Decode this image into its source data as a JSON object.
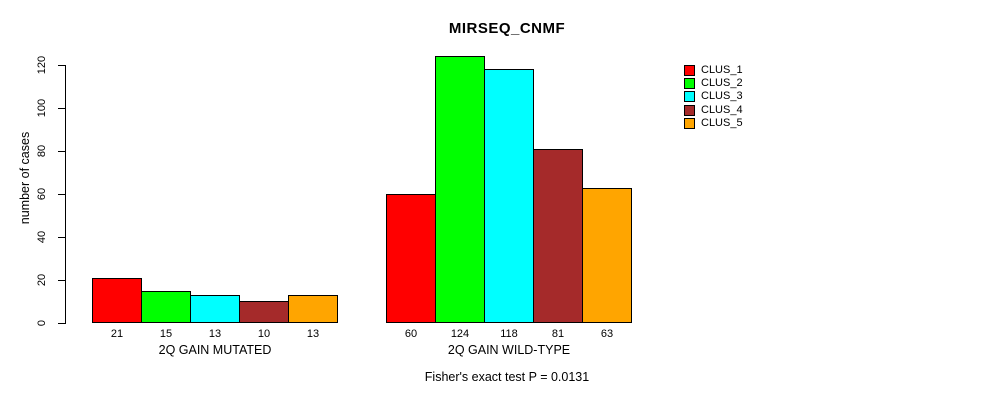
{
  "chart_data": {
    "type": "bar",
    "title": "MIRSEQ_CNMF",
    "ylabel": "number of cases",
    "xlabel": "",
    "ylim": [
      0,
      120
    ],
    "yticks": [
      0,
      20,
      40,
      60,
      80,
      100,
      120
    ],
    "grid": false,
    "legend_position": "right",
    "categories": [
      "2Q GAIN MUTATED",
      "2Q GAIN WILD-TYPE"
    ],
    "groups": [
      {
        "label": "2Q GAIN MUTATED",
        "values": [
          21,
          15,
          13,
          10,
          13
        ]
      },
      {
        "label": "2Q GAIN WILD-TYPE",
        "values": [
          60,
          124,
          118,
          81,
          63
        ]
      }
    ],
    "series": [
      {
        "name": "CLUS_1",
        "color": "#FF0000"
      },
      {
        "name": "CLUS_2",
        "color": "#00FF00"
      },
      {
        "name": "CLUS_3",
        "color": "#00FFFF"
      },
      {
        "name": "CLUS_4",
        "color": "#A52A2A"
      },
      {
        "name": "CLUS_5",
        "color": "#FFA500"
      }
    ],
    "bar_value_labels": true,
    "annotation": "Fisher's exact test P = 0.0131"
  }
}
